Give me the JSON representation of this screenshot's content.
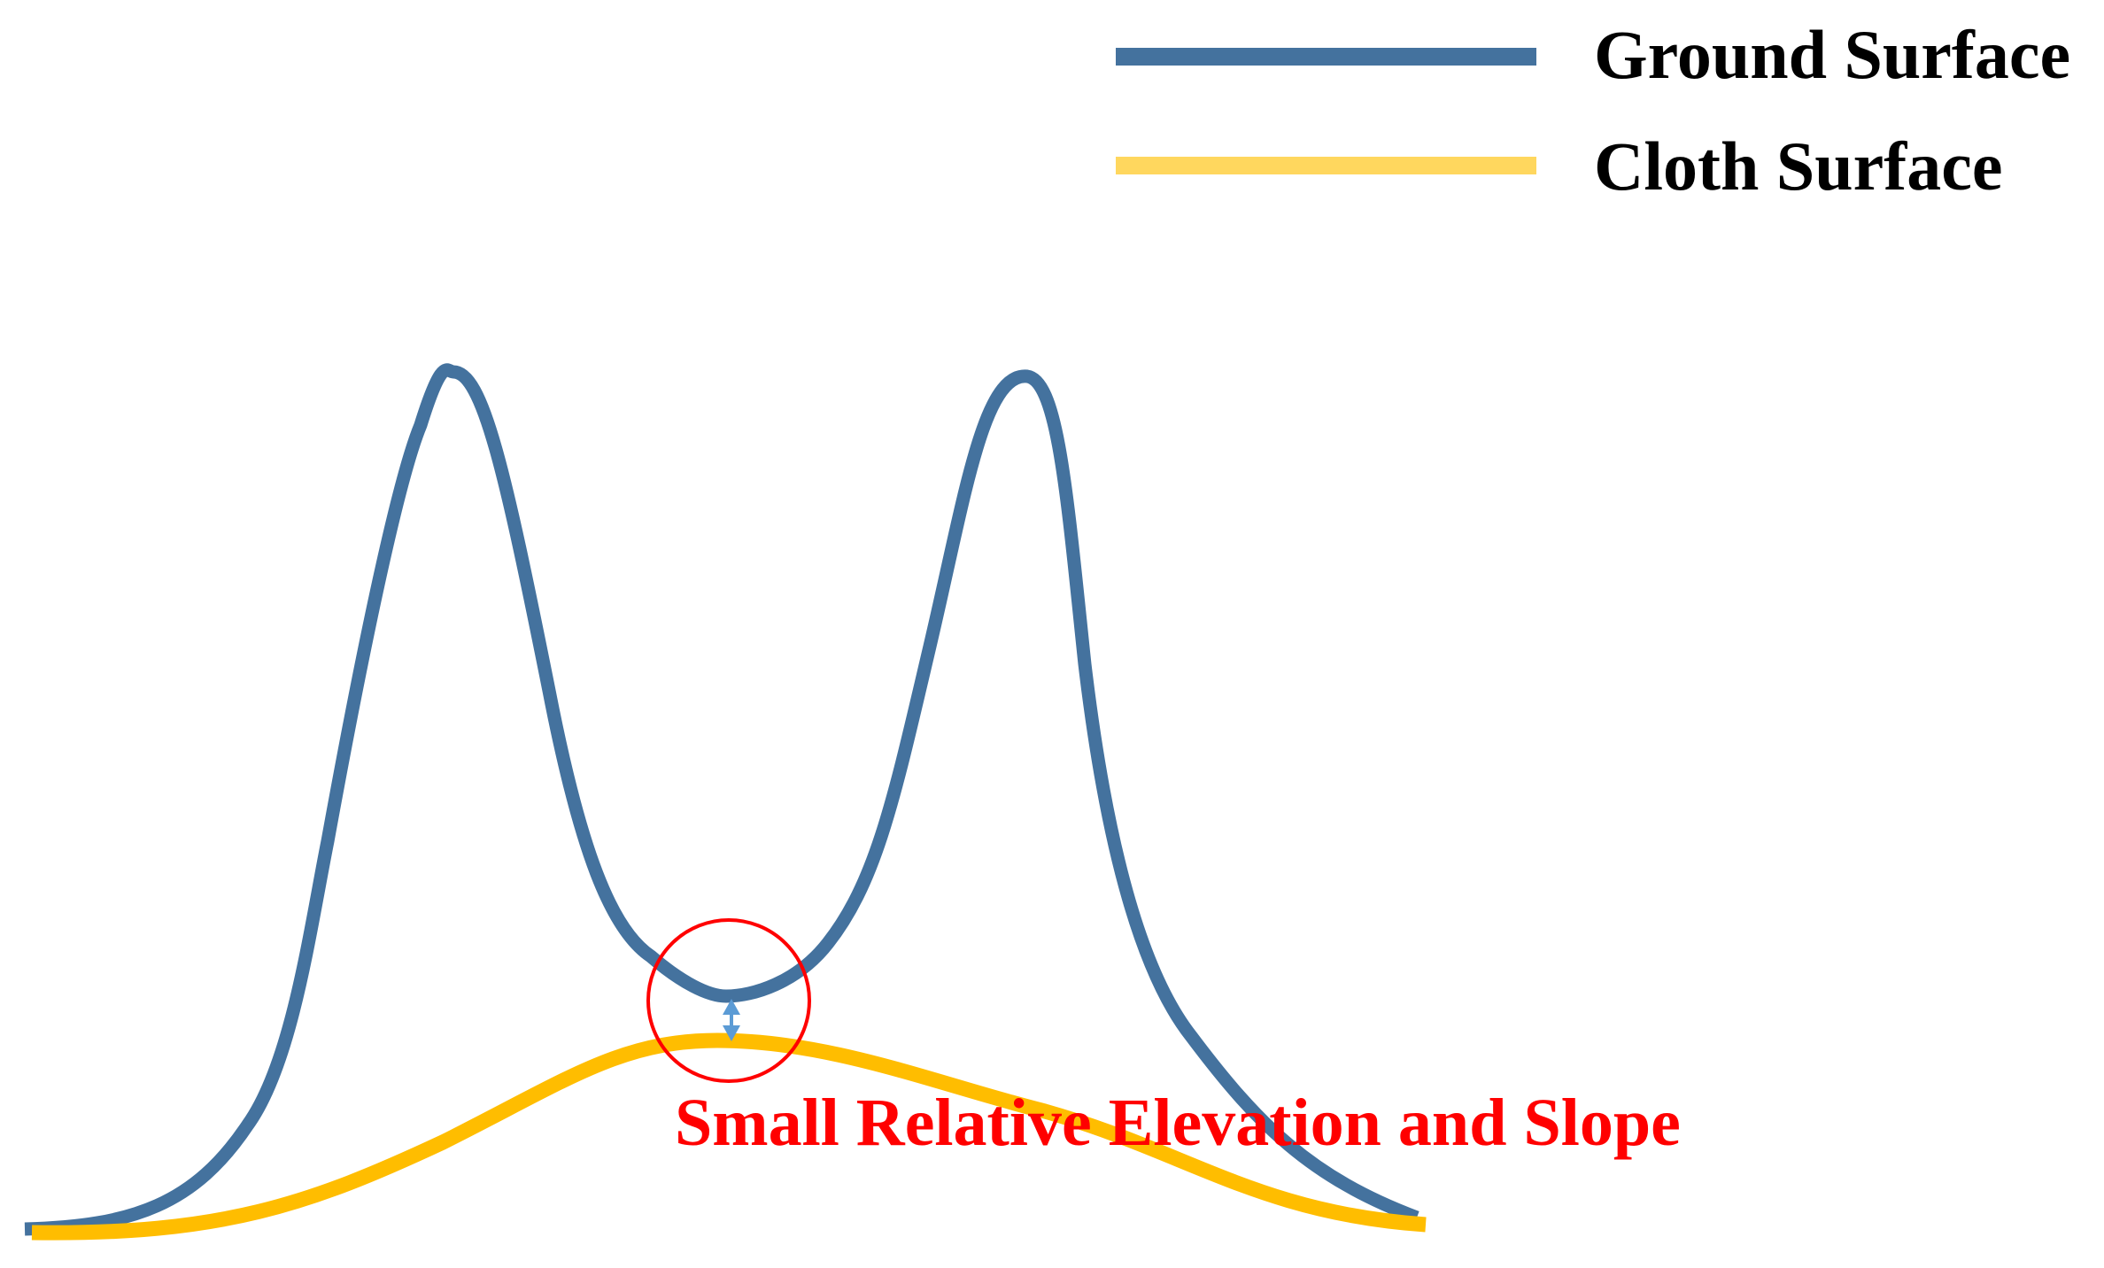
{
  "legend": {
    "items": [
      {
        "label": "Ground Surface",
        "color": "#44729e"
      },
      {
        "label": "Cloth Surface",
        "color": "#ffd75e"
      }
    ]
  },
  "curves": {
    "ground_color": "#44729e",
    "cloth_color": "#ffbd00"
  },
  "annotation": {
    "text": "Small Relative Elevation and Slope",
    "color": "#ff0000"
  },
  "marker": {
    "circle_color": "#ff0000",
    "arrow_color": "#5b9bd5"
  }
}
